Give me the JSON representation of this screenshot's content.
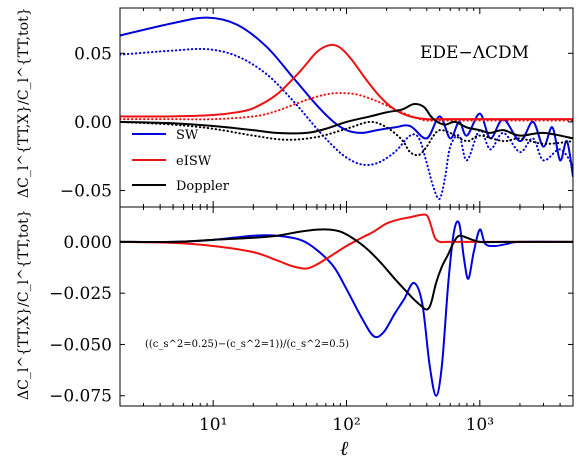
{
  "chart_data": [
    {
      "type": "line",
      "panel": "top",
      "annotation": "EDE−ΛCDM",
      "ylabel": "ΔC_l^{TT,X}/C_l^{TT,tot}",
      "yscale": "linear",
      "xscale": "log",
      "xlim": [
        2,
        5000
      ],
      "ylim": [
        -0.062,
        0.083
      ],
      "yticks": [
        -0.05,
        0.0,
        0.05
      ],
      "ytick_labels": [
        "−0.05",
        "0.00",
        "0.05"
      ],
      "legend_position": "lower-left",
      "legend": [
        "SW",
        "eISW",
        "Doppler"
      ],
      "series": [
        {
          "name": "SW",
          "color": "#0000dd",
          "style": "solid",
          "x": [
            2,
            5,
            9,
            15,
            25,
            40,
            60,
            80,
            100,
            130,
            170,
            230,
            300,
            400,
            500,
            600,
            700,
            800,
            1000,
            1200,
            1500,
            2000,
            2500,
            3000,
            3500,
            4000,
            4500,
            5000
          ],
          "y": [
            0.063,
            0.072,
            0.076,
            0.071,
            0.055,
            0.032,
            0.012,
            0.0,
            -0.006,
            -0.008,
            -0.006,
            -0.004,
            -0.003,
            -0.012,
            0.004,
            -0.012,
            0.0,
            -0.01,
            0.006,
            -0.012,
            0.002,
            -0.014,
            0.0,
            -0.018,
            -0.004,
            -0.028,
            -0.014,
            -0.04
          ]
        },
        {
          "name": "SW_dotted",
          "color": "#0000dd",
          "style": "dotted",
          "x": [
            2,
            5,
            9,
            15,
            25,
            40,
            60,
            80,
            100,
            130,
            170,
            230,
            300,
            350,
            400,
            450,
            500,
            550,
            600,
            700,
            800,
            1000,
            1200,
            1500,
            2000,
            2500,
            3000,
            4000,
            5000
          ],
          "y": [
            0.049,
            0.052,
            0.053,
            0.048,
            0.035,
            0.015,
            -0.005,
            -0.018,
            -0.026,
            -0.031,
            -0.03,
            -0.022,
            -0.01,
            -0.012,
            -0.03,
            -0.048,
            -0.056,
            -0.04,
            -0.018,
            -0.01,
            -0.028,
            -0.006,
            -0.02,
            -0.008,
            -0.022,
            -0.012,
            -0.028,
            -0.02,
            -0.032
          ]
        },
        {
          "name": "eISW",
          "color": "#ee1111",
          "style": "solid",
          "x": [
            2,
            5,
            10,
            15,
            20,
            30,
            45,
            60,
            75,
            90,
            110,
            140,
            180,
            230,
            300,
            400,
            500,
            700,
            1000,
            2000,
            5000
          ],
          "y": [
            0.004,
            0.004,
            0.005,
            0.007,
            0.01,
            0.02,
            0.037,
            0.051,
            0.056,
            0.054,
            0.045,
            0.031,
            0.018,
            0.009,
            0.004,
            0.002,
            0.002,
            0.002,
            0.002,
            0.002,
            0.002
          ]
        },
        {
          "name": "eISW_dotted",
          "color": "#ee1111",
          "style": "dotted",
          "x": [
            2,
            5,
            10,
            20,
            30,
            50,
            70,
            90,
            120,
            160,
            200,
            260,
            330,
            400,
            500,
            700,
            1000,
            2000,
            5000
          ],
          "y": [
            0.002,
            0.002,
            0.002,
            0.004,
            0.008,
            0.016,
            0.02,
            0.021,
            0.02,
            0.016,
            0.012,
            0.007,
            0.003,
            0.001,
            0.001,
            0.001,
            0.001,
            0.001,
            0.001
          ]
        },
        {
          "name": "Doppler",
          "color": "#000000",
          "style": "solid",
          "x": [
            2,
            5,
            10,
            20,
            30,
            50,
            70,
            100,
            150,
            200,
            260,
            320,
            380,
            430,
            480,
            550,
            650,
            800,
            1000,
            1200,
            1500,
            2000,
            3000,
            5000
          ],
          "y": [
            0.0,
            -0.001,
            -0.003,
            -0.006,
            -0.008,
            -0.008,
            -0.005,
            0.0,
            0.004,
            0.007,
            0.009,
            0.013,
            0.011,
            0.004,
            0.0,
            -0.002,
            0.0,
            -0.004,
            -0.006,
            -0.008,
            -0.006,
            -0.01,
            -0.008,
            -0.012
          ]
        },
        {
          "name": "Doppler_dotted",
          "color": "#000000",
          "style": "dotted",
          "x": [
            2,
            5,
            10,
            20,
            35,
            60,
            100,
            150,
            200,
            260,
            300,
            350,
            400,
            450,
            500,
            600,
            800,
            1000,
            1500,
            2000,
            3000,
            5000
          ],
          "y": [
            0.0,
            -0.002,
            -0.005,
            -0.01,
            -0.013,
            -0.011,
            -0.005,
            0.0,
            -0.004,
            -0.013,
            -0.022,
            -0.024,
            -0.018,
            -0.01,
            -0.006,
            -0.008,
            -0.014,
            -0.01,
            -0.014,
            -0.012,
            -0.016,
            -0.014
          ]
        }
      ]
    },
    {
      "type": "line",
      "panel": "bottom",
      "annotation": "((c_s^2=0.25)−(c_s^2=1))/(c_s^2=0.5)",
      "xlabel": "ℓ",
      "ylabel": "ΔC_l^{TT,X}/C_l^{TT,tot}",
      "xscale": "log",
      "yscale": "linear",
      "xlim": [
        2,
        5000
      ],
      "ylim": [
        -0.08,
        0.017
      ],
      "yticks": [
        0.0,
        -0.025,
        -0.05,
        -0.075
      ],
      "ytick_labels": [
        "0.000",
        "−0.025",
        "−0.050",
        "−0.075"
      ],
      "xticks": [
        10,
        100,
        1000
      ],
      "xtick_labels": [
        "10¹",
        "10²",
        "10³"
      ],
      "series": [
        {
          "name": "SW",
          "color": "#0000dd",
          "style": "solid",
          "x": [
            2,
            5,
            10,
            20,
            30,
            45,
            60,
            80,
            100,
            130,
            160,
            190,
            230,
            270,
            320,
            370,
            420,
            470,
            520,
            580,
            640,
            700,
            760,
            820,
            900,
            1000,
            1100,
            1300,
            1600,
            2000,
            5000
          ],
          "y": [
            0.0,
            0.0,
            0.001,
            0.003,
            0.003,
            0.001,
            -0.004,
            -0.012,
            -0.023,
            -0.037,
            -0.046,
            -0.044,
            -0.035,
            -0.028,
            -0.02,
            -0.03,
            -0.06,
            -0.075,
            -0.06,
            -0.02,
            0.005,
            0.009,
            -0.008,
            -0.018,
            -0.005,
            0.006,
            -0.001,
            -0.002,
            -0.001,
            0.0,
            0.0
          ]
        },
        {
          "name": "eISW",
          "color": "#ee1111",
          "style": "solid",
          "x": [
            2,
            5,
            10,
            20,
            30,
            40,
            50,
            60,
            80,
            100,
            130,
            160,
            200,
            250,
            300,
            350,
            400,
            430,
            460,
            500,
            550,
            700,
            1000,
            5000
          ],
          "y": [
            0.0,
            -0.0005,
            -0.002,
            -0.005,
            -0.009,
            -0.012,
            -0.013,
            -0.011,
            -0.006,
            -0.002,
            0.002,
            0.005,
            0.009,
            0.011,
            0.012,
            0.013,
            0.013,
            0.008,
            0.002,
            0.0,
            0.0,
            0.0,
            0.0,
            0.0
          ]
        },
        {
          "name": "Doppler",
          "color": "#000000",
          "style": "solid",
          "x": [
            2,
            5,
            10,
            20,
            30,
            45,
            60,
            75,
            90,
            110,
            140,
            180,
            230,
            280,
            320,
            360,
            400,
            430,
            470,
            520,
            580,
            640,
            700,
            800,
            1000,
            1500,
            5000
          ],
          "y": [
            0.0,
            0.0,
            0.001,
            0.002,
            0.003,
            0.005,
            0.006,
            0.006,
            0.005,
            0.002,
            -0.003,
            -0.01,
            -0.018,
            -0.024,
            -0.028,
            -0.031,
            -0.033,
            -0.03,
            -0.02,
            -0.012,
            -0.006,
            0.0,
            0.003,
            0.002,
            0.0,
            0.0,
            0.0
          ]
        }
      ]
    }
  ]
}
